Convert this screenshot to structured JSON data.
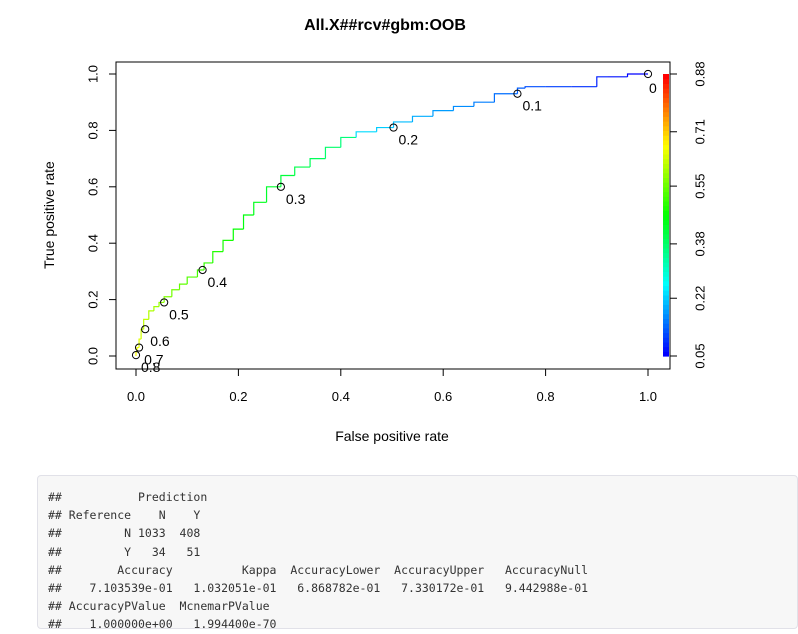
{
  "chart_data": {
    "type": "line",
    "title": "All.X##rcv#gbm:OOB",
    "xlabel": "False positive rate",
    "ylabel": "True positive rate",
    "xlim": [
      0,
      1
    ],
    "ylim": [
      0,
      1
    ],
    "x_ticks": [
      "0.0",
      "0.2",
      "0.4",
      "0.6",
      "0.8",
      "1.0"
    ],
    "y_ticks": [
      "0.0",
      "0.2",
      "0.4",
      "0.6",
      "0.8",
      "1.0"
    ],
    "grid": false,
    "legend": "colorbar-right",
    "colorbar": {
      "ticks": [
        "0.05",
        "0.22",
        "0.38",
        "0.55",
        "0.71",
        "0.88"
      ],
      "min": 0.05,
      "max": 0.88,
      "palette": [
        "#0000ff",
        "#00ffff",
        "#00ff00",
        "#ffff00",
        "#ff0000"
      ]
    },
    "roc_curve": [
      [
        0.0,
        0.0
      ],
      [
        0.002,
        0.015
      ],
      [
        0.006,
        0.03
      ],
      [
        0.01,
        0.06
      ],
      [
        0.015,
        0.095
      ],
      [
        0.025,
        0.13
      ],
      [
        0.035,
        0.16
      ],
      [
        0.045,
        0.175
      ],
      [
        0.055,
        0.19
      ],
      [
        0.07,
        0.21
      ],
      [
        0.085,
        0.235
      ],
      [
        0.1,
        0.255
      ],
      [
        0.12,
        0.28
      ],
      [
        0.133,
        0.305
      ],
      [
        0.15,
        0.33
      ],
      [
        0.17,
        0.37
      ],
      [
        0.19,
        0.41
      ],
      [
        0.21,
        0.45
      ],
      [
        0.23,
        0.5
      ],
      [
        0.255,
        0.545
      ],
      [
        0.283,
        0.6
      ],
      [
        0.31,
        0.64
      ],
      [
        0.34,
        0.67
      ],
      [
        0.37,
        0.7
      ],
      [
        0.4,
        0.74
      ],
      [
        0.43,
        0.775
      ],
      [
        0.47,
        0.795
      ],
      [
        0.503,
        0.81
      ],
      [
        0.54,
        0.83
      ],
      [
        0.58,
        0.85
      ],
      [
        0.62,
        0.87
      ],
      [
        0.66,
        0.885
      ],
      [
        0.7,
        0.9
      ],
      [
        0.745,
        0.93
      ],
      [
        0.76,
        0.95
      ],
      [
        0.8,
        0.955
      ],
      [
        0.85,
        0.955
      ],
      [
        0.9,
        0.955
      ],
      [
        0.92,
        0.99
      ],
      [
        0.96,
        0.99
      ],
      [
        1.0,
        1.0
      ]
    ],
    "cutoff_points": [
      {
        "label": "0",
        "fpr": 1.0,
        "tpr": 1.0
      },
      {
        "label": "0.1",
        "fpr": 0.745,
        "tpr": 0.93
      },
      {
        "label": "0.2",
        "fpr": 0.503,
        "tpr": 0.81
      },
      {
        "label": "0.3",
        "fpr": 0.283,
        "tpr": 0.6
      },
      {
        "label": "0.4",
        "fpr": 0.13,
        "tpr": 0.305
      },
      {
        "label": "0.5",
        "fpr": 0.055,
        "tpr": 0.19
      },
      {
        "label": "0.6",
        "fpr": 0.018,
        "tpr": 0.095
      },
      {
        "label": "0.7",
        "fpr": 0.006,
        "tpr": 0.03
      },
      {
        "label": "0.8",
        "fpr": 0.0,
        "tpr": 0.003
      }
    ]
  },
  "console_output": [
    "##           Prediction",
    "## Reference    N    Y",
    "##         N 1033  408",
    "##         Y   34   51",
    "##        Accuracy          Kappa  AccuracyLower  AccuracyUpper   AccuracyNull",
    "##    7.103539e-01   1.032051e-01   6.868782e-01   7.330172e-01   9.442988e-01",
    "## AccuracyPValue  McnemarPValue",
    "##    1.000000e+00   1.994400e-70"
  ]
}
